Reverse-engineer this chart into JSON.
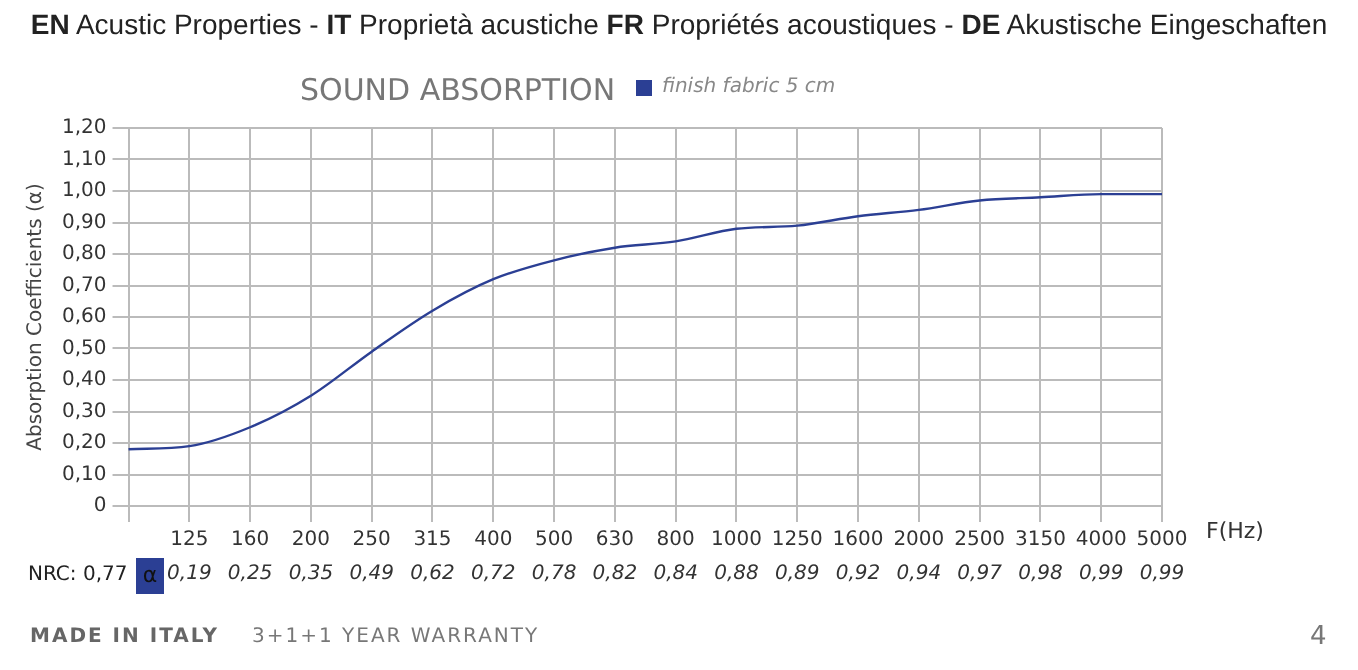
{
  "chart_data": {
    "type": "line",
    "title": "EN Acustic Properties - IT Proprietà acustiche FR Propriétés acoustiques - DE Akustische Eingeschaften",
    "subtitle": "SOUND ABSORPTION",
    "xlabel": "F(Hz)",
    "ylabel": "Absorption Coefficients (α)",
    "categories": [
      null,
      "125",
      "160",
      "200",
      "250",
      "315",
      "400",
      "500",
      "630",
      "800",
      "1000",
      "1250",
      "1600",
      "2000",
      "2500",
      "3150",
      "4000",
      "5000"
    ],
    "series": [
      {
        "name": "finish fabric 5 cm",
        "color": "#2b3f94",
        "values": [
          0.18,
          0.19,
          0.25,
          0.35,
          0.49,
          0.62,
          0.72,
          0.78,
          0.82,
          0.84,
          0.88,
          0.89,
          0.92,
          0.94,
          0.97,
          0.98,
          0.99,
          0.99
        ],
        "value_labels": [
          null,
          "0,19",
          "0,25",
          "0,35",
          "0,49",
          "0,62",
          "0,72",
          "0,78",
          "0,82",
          "0,84",
          "0,88",
          "0,89",
          "0,92",
          "0,94",
          "0,97",
          "0,98",
          "0,99",
          "0,99"
        ]
      }
    ],
    "ylim": [
      0,
      1.2
    ],
    "yticks": [
      {
        "value": 0,
        "label": "0"
      },
      {
        "value": 0.1,
        "label": "0,10"
      },
      {
        "value": 0.2,
        "label": "0,20"
      },
      {
        "value": 0.3,
        "label": "0,30"
      },
      {
        "value": 0.4,
        "label": "0,40"
      },
      {
        "value": 0.5,
        "label": "0,50"
      },
      {
        "value": 0.6,
        "label": "0,60"
      },
      {
        "value": 0.7,
        "label": "0,70"
      },
      {
        "value": 0.8,
        "label": "0,80"
      },
      {
        "value": 0.9,
        "label": "0,90"
      },
      {
        "value": 1,
        "label": "1,00"
      },
      {
        "value": 1.1,
        "label": "1,10"
      },
      {
        "value": 1.2,
        "label": "1,20"
      }
    ],
    "grid": true,
    "legend": "top",
    "marker": "none",
    "line_style": "solid",
    "annotations": [
      "NRC: 0,77",
      "α",
      "MADE IN ITALY",
      "3+1+1 YEAR WARRANTY",
      "4"
    ]
  }
}
